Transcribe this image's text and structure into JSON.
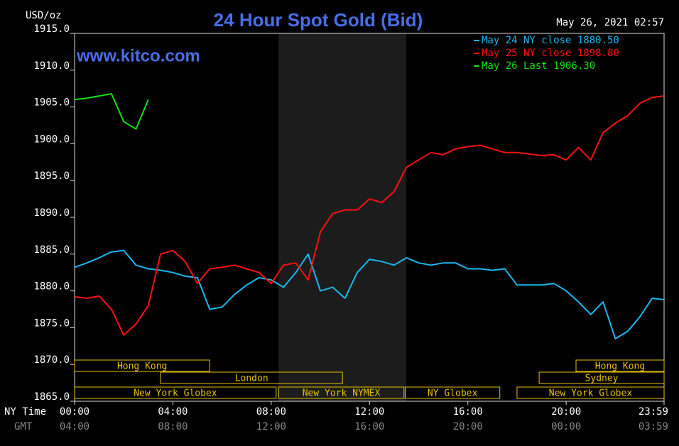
{
  "chart_data": {
    "type": "line",
    "title": "24 Hour Spot Gold (Bid)",
    "unit_label": "USD/oz",
    "timestamp": "May 26, 2021 02:57",
    "watermark": "www.kitco.com",
    "x_axis_label": "NY Time",
    "x2_axis_label": "GMT",
    "x": [
      0,
      0.5,
      1,
      1.5,
      2,
      2.5,
      3,
      3.5,
      4,
      4.5,
      5,
      5.5,
      6,
      6.5,
      7,
      7.5,
      8,
      8.5,
      9,
      9.5,
      10,
      10.5,
      11,
      11.5,
      12,
      12.5,
      13,
      13.5,
      14,
      14.5,
      15,
      15.5,
      16,
      16.5,
      17,
      17.5,
      18,
      18.5,
      19,
      19.5,
      20,
      20.5,
      21,
      21.5,
      22,
      22.5,
      23,
      23.5,
      23.983
    ],
    "series": [
      {
        "name": "May 24 NY close 1880.50",
        "color": "#18b8f0",
        "values": [
          1883.2,
          1883.8,
          1884.5,
          1885.3,
          1885.5,
          1883.5,
          1883.0,
          1882.8,
          1882.5,
          1882.0,
          1881.8,
          1877.5,
          1877.8,
          1879.5,
          1880.8,
          1881.8,
          1881.5,
          1880.5,
          1882.5,
          1885.0,
          1880.0,
          1880.5,
          1879.0,
          1882.5,
          1884.3,
          1884.0,
          1883.5,
          1884.5,
          1883.8,
          1883.5,
          1883.8,
          1883.8,
          1883.0,
          1883.0,
          1882.8,
          1883.0,
          1880.8,
          1880.8,
          1880.8,
          1881.0,
          1880.0,
          1878.5,
          1876.8,
          1878.5,
          1873.5,
          1874.5,
          1876.5,
          1879.0,
          1878.8
        ]
      },
      {
        "name": "May 25 NY close 1898.80",
        "color": "#ff1010",
        "values": [
          1879.2,
          1879.0,
          1879.3,
          1877.5,
          1874.0,
          1875.5,
          1878.0,
          1885.0,
          1885.5,
          1884.0,
          1881.0,
          1883.0,
          1883.2,
          1883.5,
          1883.0,
          1882.5,
          1881.0,
          1883.5,
          1883.8,
          1881.5,
          1888.0,
          1890.5,
          1891.0,
          1891.0,
          1892.5,
          1892.0,
          1893.5,
          1896.8,
          1897.8,
          1898.8,
          1898.5,
          1899.3,
          1899.6,
          1899.8,
          1899.3,
          1898.8,
          1898.8,
          1898.6,
          1898.4,
          1898.5,
          1897.8,
          1899.5,
          1897.8,
          1901.5,
          1902.8,
          1903.8,
          1905.5,
          1906.3,
          1906.5
        ]
      },
      {
        "name": "May 26 Last 1906.30",
        "color": "#10e010",
        "values": [
          1906.0,
          1906.2,
          1906.5,
          1906.8,
          1903.0,
          1902.0,
          1906.0,
          null,
          null,
          null,
          null,
          null,
          null,
          null,
          null,
          null,
          null,
          null,
          null,
          null,
          null,
          null,
          null,
          null,
          null,
          null,
          null,
          null,
          null,
          null,
          null,
          null,
          null,
          null,
          null,
          null,
          null,
          null,
          null,
          null,
          null,
          null,
          null,
          null,
          null,
          null,
          null,
          null,
          null
        ]
      }
    ],
    "xlim": [
      0,
      23.983
    ],
    "xticks": [
      {
        "value": 0,
        "label": "00:00"
      },
      {
        "value": 4,
        "label": "04:00"
      },
      {
        "value": 8,
        "label": "08:00"
      },
      {
        "value": 12,
        "label": "12:00"
      },
      {
        "value": 16,
        "label": "16:00"
      },
      {
        "value": 20,
        "label": "20:00"
      },
      {
        "value": 23.983,
        "label": "23:59"
      }
    ],
    "x2ticks": [
      "04:00",
      "08:00",
      "12:00",
      "16:00",
      "20:00",
      "00:00",
      "03:59"
    ],
    "ylim": [
      1865,
      1915
    ],
    "yticks": [
      {
        "value": 1865,
        "label": "1865.0"
      },
      {
        "value": 1870,
        "label": "1870.0"
      },
      {
        "value": 1875,
        "label": "1875.0"
      },
      {
        "value": 1880,
        "label": "1880.0"
      },
      {
        "value": 1885,
        "label": "1885.0"
      },
      {
        "value": 1890,
        "label": "1890.0"
      },
      {
        "value": 1895,
        "label": "1895.0"
      },
      {
        "value": 1900,
        "label": "1900.0"
      },
      {
        "value": 1905,
        "label": "1905.0"
      },
      {
        "value": 1910,
        "label": "1910.0"
      },
      {
        "value": 1915,
        "label": "1915.0"
      }
    ],
    "sessions": [
      {
        "label": "Hong Kong",
        "start": 0,
        "end": 5.5,
        "row": 0
      },
      {
        "label": "London",
        "start": 3.5,
        "end": 10.9,
        "row": 1
      },
      {
        "label": "New York Globex",
        "start": 0,
        "end": 8.2,
        "row": 2
      },
      {
        "label": "New York NYMEX",
        "start": 8.3,
        "end": 13.4,
        "row": 2
      },
      {
        "label": "NY Globex",
        "start": 13.45,
        "end": 17.3,
        "row": 2
      },
      {
        "label": "Hong Kong",
        "start": 20.4,
        "end": 23.983,
        "row": 0
      },
      {
        "label": "Sydney",
        "start": 18.9,
        "end": 23.983,
        "row": 1
      },
      {
        "label": "New York Globex",
        "start": 18.0,
        "end": 23.983,
        "row": 2
      }
    ]
  }
}
